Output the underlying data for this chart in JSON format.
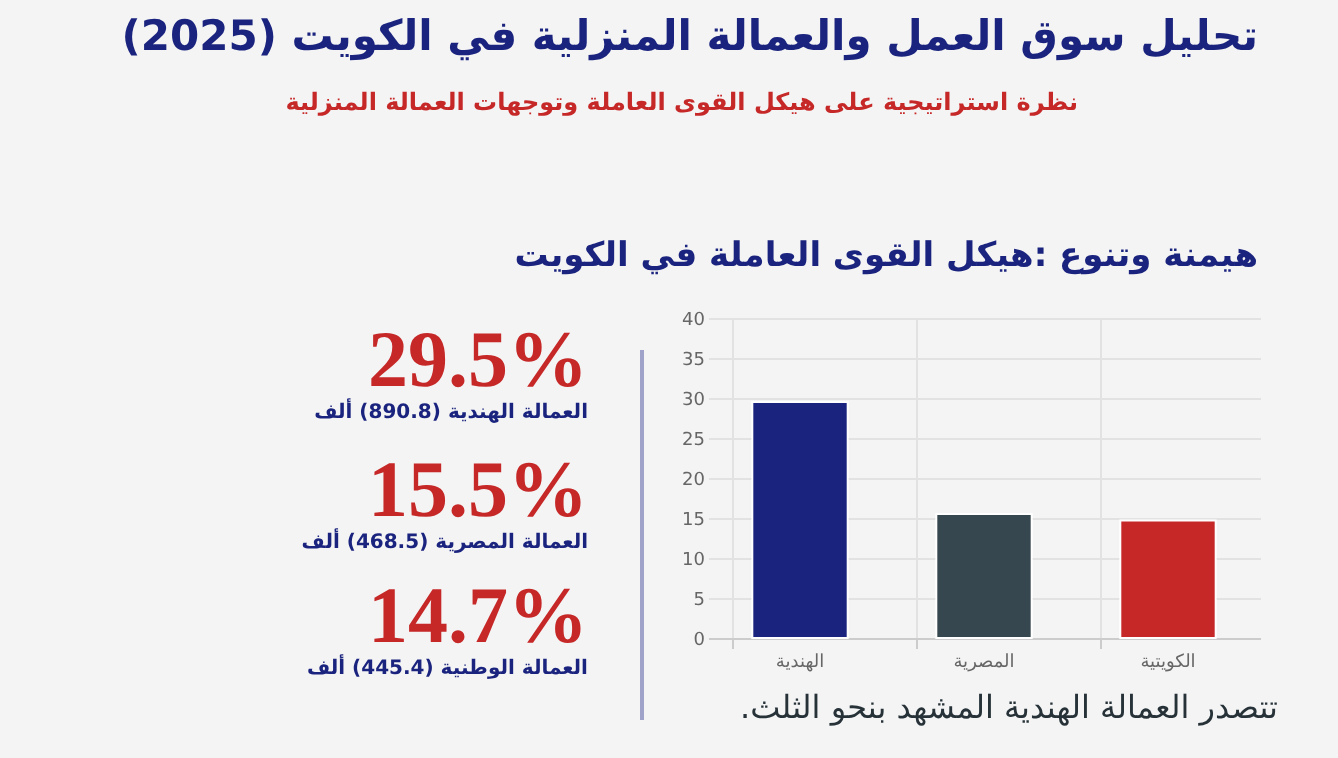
{
  "chart_data": {
    "type": "bar",
    "title": "تحليل سوق العمل والعمالة المنزلية في الكويت (2025)",
    "subtitle": "نظرة استراتيجية على هيكل القوى العاملة وتوجهات العمالة المنزلية",
    "categories": [
      "الهندية",
      "المصرية",
      "الكويتية"
    ],
    "values": [
      29.5,
      15.5,
      14.7
    ],
    "colors": [
      "#1a237e",
      "#37474f",
      "#c62828"
    ],
    "ylim": [
      0,
      40
    ],
    "yticks": [
      0,
      5,
      10,
      15,
      20,
      25,
      30,
      35,
      40
    ],
    "grid": true,
    "annotations": [
      "هيمنة وتنوع :هيكل القوى العاملة في الكويت",
      "29.5%",
      "العمالة الهندية (890.8) ألف",
      "15.5%",
      "العمالة المصرية (468.5) ألف",
      "14.7%",
      "العمالة الوطنية (445.4) ألف",
      "تتصدر العمالة الهندية المشهد بنحو الثلث."
    ]
  }
}
